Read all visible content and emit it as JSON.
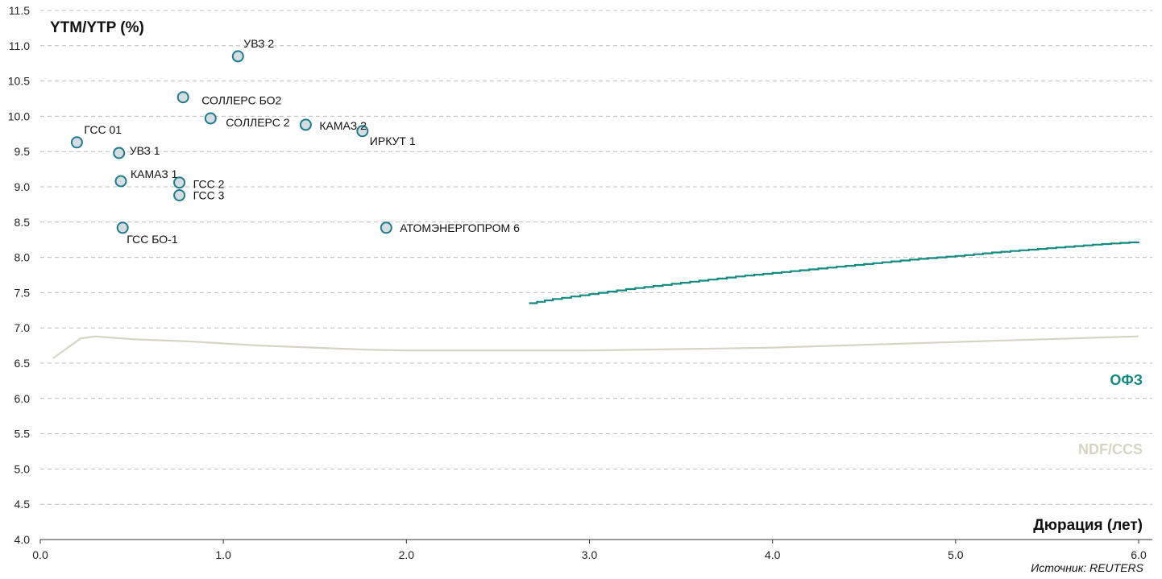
{
  "chart_data": {
    "type": "scatter",
    "ylabel": "YTM/YTP (%)",
    "xlabel": "Дюрация (лет)",
    "source": "Источник: REUTERS",
    "xlim": [
      0,
      6
    ],
    "ylim": [
      4,
      11.5
    ],
    "x_ticks": [
      "0.0",
      "1.0",
      "2.0",
      "3.0",
      "4.0",
      "5.0",
      "6.0"
    ],
    "y_ticks": [
      "4.0",
      "4.5",
      "5.0",
      "5.5",
      "6.0",
      "6.5",
      "7.0",
      "7.5",
      "8.0",
      "8.5",
      "9.0",
      "9.5",
      "10.0",
      "10.5",
      "11.0",
      "11.5"
    ],
    "grid": "horizontal dashed",
    "colors": {
      "marker_fill": "#d3dde2",
      "marker_stroke": "#1f7a8c",
      "ofz": "#138a80",
      "ndf": "#d6d4c3",
      "grid": "#bdbdbd"
    },
    "points": [
      {
        "label": "УВЗ 2",
        "x": 1.08,
        "y": 10.85
      },
      {
        "label": "СОЛЛЕРС БО2",
        "x": 0.78,
        "y": 10.27
      },
      {
        "label": "СОЛЛЕРС 2",
        "x": 0.93,
        "y": 9.97
      },
      {
        "label": "КАМАЗ 2",
        "x": 1.45,
        "y": 9.88
      },
      {
        "label": "ИРКУТ 1",
        "x": 1.76,
        "y": 9.79
      },
      {
        "label": "ГСС 01",
        "x": 0.2,
        "y": 9.63
      },
      {
        "label": "УВЗ 1",
        "x": 0.43,
        "y": 9.48
      },
      {
        "label": "КАМАЗ 1",
        "x": 0.44,
        "y": 9.08
      },
      {
        "label": "ГСС 2",
        "x": 0.76,
        "y": 9.06
      },
      {
        "label": "ГСС 3",
        "x": 0.76,
        "y": 8.88
      },
      {
        "label": "ГСС БО-1",
        "x": 0.45,
        "y": 8.42
      },
      {
        "label": "АТОМЭНЕРГОПРОМ 6",
        "x": 1.89,
        "y": 8.42
      }
    ],
    "series": [
      {
        "name": "ОФЗ",
        "type": "line",
        "x": [
          2.67,
          2.8,
          3.0,
          3.2,
          3.4,
          3.6,
          3.8,
          4.0,
          4.2,
          4.4,
          4.6,
          4.8,
          5.0,
          5.2,
          5.4,
          5.6,
          5.8,
          6.0
        ],
        "y": [
          7.35,
          7.41,
          7.48,
          7.55,
          7.61,
          7.67,
          7.73,
          7.78,
          7.83,
          7.88,
          7.93,
          7.98,
          8.02,
          8.07,
          8.11,
          8.15,
          8.19,
          8.22
        ]
      },
      {
        "name": "NDF/CCS",
        "type": "line",
        "x": [
          0.07,
          0.15,
          0.22,
          0.3,
          0.4,
          0.5,
          0.6,
          0.8,
          1.0,
          1.2,
          1.4,
          1.6,
          1.8,
          2.0,
          2.5,
          3.0,
          3.5,
          4.0,
          4.5,
          5.0,
          5.5,
          6.0
        ],
        "y": [
          6.57,
          6.72,
          6.85,
          6.88,
          6.86,
          6.84,
          6.83,
          6.81,
          6.78,
          6.75,
          6.73,
          6.71,
          6.69,
          6.68,
          6.68,
          6.68,
          6.7,
          6.72,
          6.76,
          6.8,
          6.84,
          6.88
        ]
      }
    ]
  }
}
